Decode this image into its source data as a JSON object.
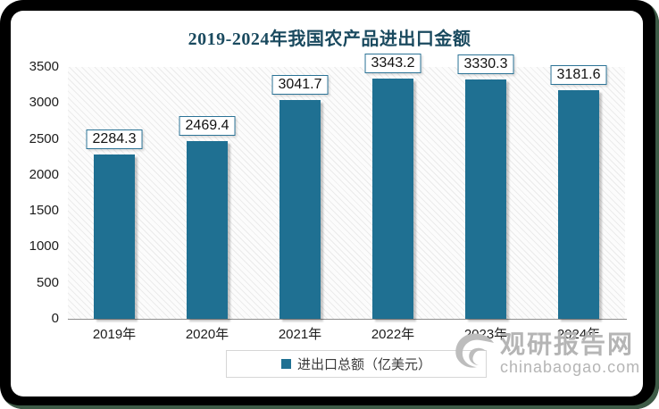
{
  "chart_data": {
    "type": "bar",
    "title": "2019-2024年我国农产品进出口金额",
    "categories": [
      "2019年",
      "2020年",
      "2021年",
      "2022年",
      "2023年",
      "2024年"
    ],
    "values": [
      2284.3,
      2469.4,
      3041.7,
      3343.2,
      3330.3,
      3181.6
    ],
    "series_name": "进出口总额（亿美元）",
    "xlabel": "",
    "ylabel": "",
    "ylim": [
      0,
      3500
    ],
    "yticks": [
      0,
      500,
      1000,
      1500,
      2000,
      2500,
      3000,
      3500
    ],
    "grid": false,
    "data_labels": true,
    "legend_position": "bottom-center",
    "bar_color": "#1F7092",
    "title_color": "#1A4A5F",
    "label_border_color": "#2B7396",
    "plot_hatch": "diagonal"
  },
  "legend": {
    "label": "进出口总额（亿美元）"
  },
  "watermark": {
    "site_name": "观研报告网",
    "site_domain": "chinabaogao.com",
    "color": "#B5B5B5"
  }
}
